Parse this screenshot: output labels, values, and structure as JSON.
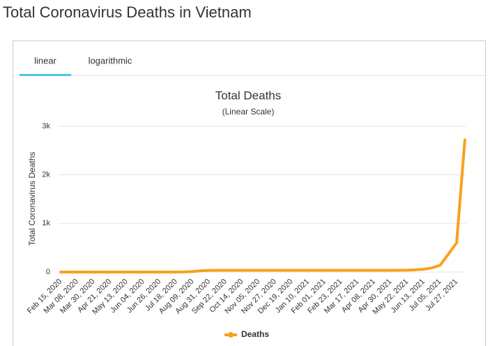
{
  "header": {
    "title": "Total Coronavirus Deaths in Vietnam"
  },
  "tabs": [
    "linear",
    "logarithmic"
  ],
  "chart_data": {
    "type": "line",
    "title": "Total Deaths",
    "subtitle": "(Linear Scale)",
    "y_label": "Total Coronavirus Deaths",
    "categories": [
      "Feb 15, 2020",
      null,
      "Mar 08, 2020",
      null,
      "Mar 30, 2020",
      null,
      "Apr 21, 2020",
      null,
      "May 13, 2020",
      null,
      "Jun 04, 2020",
      null,
      "Jun 26, 2020",
      null,
      "Jul 18, 2020",
      null,
      "Aug 09, 2020",
      null,
      "Aug 31, 2020",
      null,
      "Sep 22, 2020",
      null,
      "Oct 14, 2020",
      null,
      "Nov 05, 2020",
      null,
      "Nov 27, 2020",
      null,
      "Dec 19, 2020",
      null,
      "Jan 10, 2021",
      null,
      "Feb 01, 2021",
      null,
      "Feb 23, 2021",
      null,
      "Mar 17, 2021",
      null,
      "Apr 08, 2021",
      null,
      "Apr 30, 2021",
      null,
      "May 22, 2021",
      null,
      "Jun 13, 2021",
      null,
      "Jul 05, 2021",
      null,
      "Jul 27, 2021",
      null
    ],
    "series": [
      {
        "name": "Deaths",
        "color": "#f8a11c",
        "values": [
          0,
          0,
          0,
          0,
          0,
          0,
          0,
          0,
          0,
          0,
          0,
          0,
          0,
          0,
          0,
          3,
          10,
          27,
          34,
          35,
          35,
          35,
          35,
          35,
          35,
          35,
          35,
          35,
          35,
          35,
          35,
          35,
          35,
          35,
          35,
          35,
          35,
          35,
          35,
          35,
          35,
          37,
          40,
          47,
          58,
          85,
          140,
          370,
          600,
          2720
        ]
      }
    ],
    "ylim": [
      0,
      3000
    ],
    "yticks": [
      0,
      {
        "value": 1000,
        "label": "1k"
      },
      {
        "value": 2000,
        "label": "2k"
      },
      {
        "value": 3000,
        "label": "3k"
      }
    ],
    "grid": true,
    "legend": "bottom"
  }
}
